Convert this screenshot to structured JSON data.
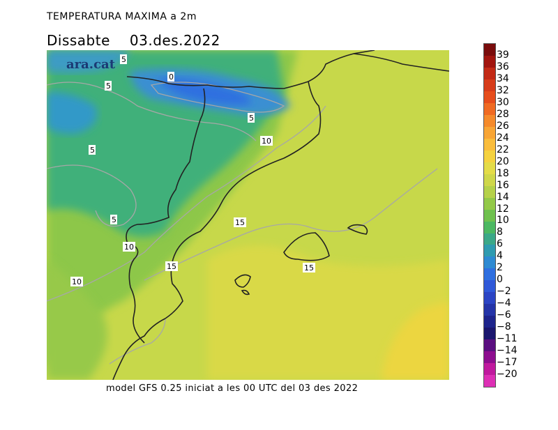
{
  "header": {
    "title": "TEMPERATURA MAXIMA a 2m",
    "day": "Dissabte",
    "date": "03.des.2022"
  },
  "map": {
    "logo": "ara.cat",
    "contour_labels": [
      "5",
      "0",
      "5",
      "5",
      "10",
      "5",
      "15",
      "5",
      "10",
      "15",
      "15",
      "10"
    ]
  },
  "legend": {
    "values": [
      "39",
      "36",
      "34",
      "32",
      "30",
      "28",
      "26",
      "24",
      "22",
      "20",
      "18",
      "16",
      "14",
      "12",
      "10",
      "8",
      "6",
      "4",
      "2",
      "0",
      "−2",
      "−4",
      "−6",
      "−8",
      "−11",
      "−14",
      "−17",
      "−20"
    ],
    "colors": [
      "#7a0c0c",
      "#a2150f",
      "#c32a16",
      "#d73c1a",
      "#e64d1c",
      "#f06a22",
      "#f58a2b",
      "#f8a535",
      "#fabd3c",
      "#f5d23f",
      "#e4dc48",
      "#cfd74a",
      "#b5d14a",
      "#93c948",
      "#6fc14e",
      "#4cb862",
      "#3ba888",
      "#2f9bb0",
      "#2e8ad2",
      "#2e6fe0",
      "#2f58d8",
      "#2b44c4",
      "#2434a8",
      "#1d248c",
      "#1a166e",
      "#5a0e80",
      "#8d0d8f",
      "#c0199e",
      "#dd2fb5"
    ]
  },
  "footer": {
    "text": "model GFS 0.25 iniciat a les 00 UTC del 03 des 2022"
  }
}
